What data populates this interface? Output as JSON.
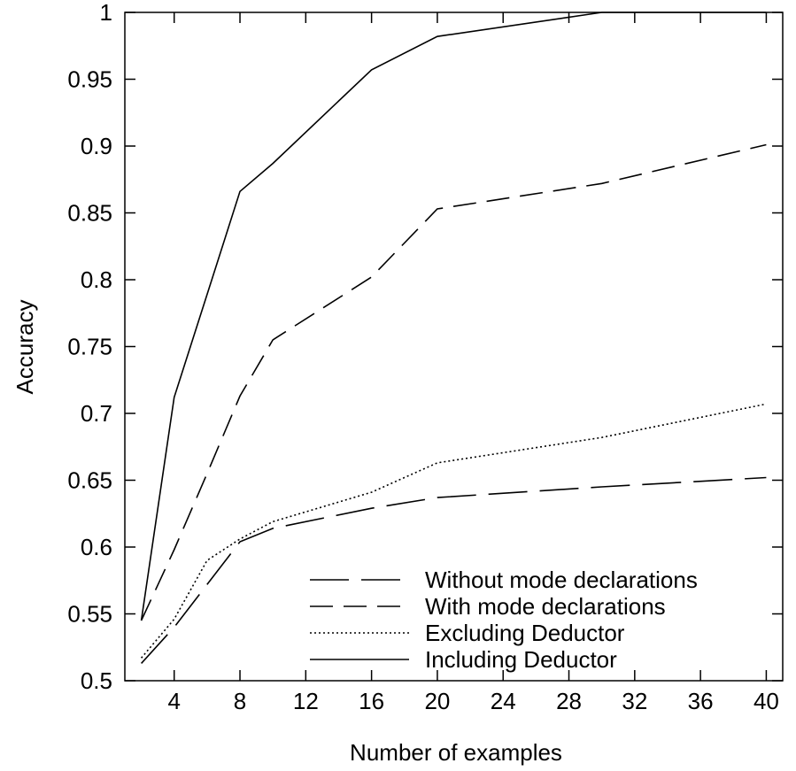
{
  "chart_data": {
    "type": "line",
    "xlabel": "Number of examples",
    "ylabel": "Accuracy",
    "xlim": [
      1,
      41
    ],
    "ylim": [
      0.5,
      1.0
    ],
    "xticks": [
      4,
      8,
      12,
      16,
      20,
      24,
      28,
      32,
      36,
      40
    ],
    "xtick_labels": [
      "4",
      "8",
      "12",
      "16",
      "20",
      "24",
      "28",
      "32",
      "36",
      "40"
    ],
    "yticks": [
      0.5,
      0.55,
      0.6,
      0.65,
      0.7,
      0.75,
      0.8,
      0.85,
      0.9,
      0.95,
      1.0
    ],
    "ytick_labels": [
      "0.5",
      "0.55",
      "0.6",
      "0.65",
      "0.7",
      "0.75",
      "0.8",
      "0.85",
      "0.9",
      "0.95",
      "1"
    ],
    "legend_position": "bottom-right",
    "series": [
      {
        "name": "Without mode declarations",
        "style": "long-dash",
        "x": [
          2,
          4,
          6,
          8,
          10,
          16,
          20,
          30,
          40
        ],
        "y": [
          0.513,
          0.54,
          0.572,
          0.604,
          0.614,
          0.629,
          0.637,
          0.645,
          0.652
        ]
      },
      {
        "name": "With mode declarations",
        "style": "dash",
        "x": [
          2,
          4,
          6,
          8,
          10,
          16,
          20,
          30,
          40
        ],
        "y": [
          0.545,
          0.598,
          0.655,
          0.713,
          0.755,
          0.802,
          0.853,
          0.872,
          0.901
        ]
      },
      {
        "name": "Excluding Deductor",
        "style": "dotted",
        "x": [
          2,
          4,
          6,
          8,
          10,
          16,
          20,
          30,
          40
        ],
        "y": [
          0.517,
          0.546,
          0.59,
          0.606,
          0.619,
          0.641,
          0.663,
          0.682,
          0.707
        ]
      },
      {
        "name": "Including Deductor",
        "style": "solid",
        "x": [
          2,
          4,
          6,
          8,
          10,
          16,
          20,
          30,
          40
        ],
        "y": [
          0.545,
          0.712,
          0.789,
          0.866,
          0.887,
          0.957,
          0.982,
          1.0,
          1.0
        ]
      }
    ]
  }
}
